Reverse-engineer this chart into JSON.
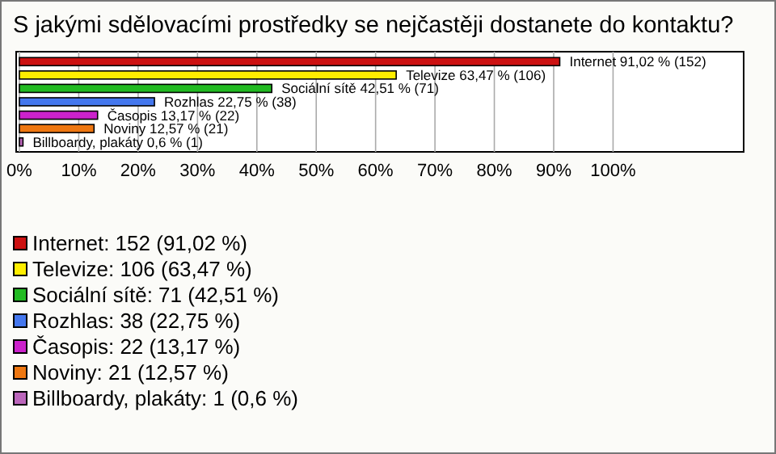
{
  "chart_data": {
    "type": "bar",
    "orientation": "horizontal",
    "title": "S jakými sdělovacími prostředky se nejčastěji dostanete do kontaktu?",
    "categories": [
      null,
      null,
      null,
      null,
      null,
      null,
      null
    ],
    "series": [
      {
        "name": "Internet: 152 (91,02 %)",
        "color": "#cc1111",
        "values": [
          91.02,
          null,
          null,
          null,
          null,
          null,
          null
        ],
        "value_labels": [
          "Internet 91,02 % (152)",
          null,
          null,
          null,
          null,
          null,
          null
        ]
      },
      {
        "name": "Televize: 106 (63,47 %)",
        "color": "#ffee00",
        "values": [
          null,
          63.47,
          null,
          null,
          null,
          null,
          null
        ],
        "value_labels": [
          null,
          "Televize 63,47 % (106)",
          null,
          null,
          null,
          null,
          null
        ]
      },
      {
        "name": "Sociální sítě: 71 (42,51 %)",
        "color": "#22bb22",
        "values": [
          null,
          null,
          42.51,
          null,
          null,
          null,
          null
        ],
        "value_labels": [
          null,
          null,
          "Sociální sítě 42,51 % (71)",
          null,
          null,
          null,
          null
        ]
      },
      {
        "name": "Rozhlas: 38 (22,75 %)",
        "color": "#4477ee",
        "values": [
          null,
          null,
          null,
          22.75,
          null,
          null,
          null
        ],
        "value_labels": [
          null,
          null,
          null,
          "Rozhlas 22,75 % (38)",
          null,
          null,
          null
        ]
      },
      {
        "name": "Časopis: 22 (13,17 %)",
        "color": "#cc22cc",
        "values": [
          null,
          null,
          null,
          null,
          13.17,
          null,
          null
        ],
        "value_labels": [
          null,
          null,
          null,
          null,
          "Časopis 13,17 % (22)",
          null,
          null
        ]
      },
      {
        "name": "Noviny: 21 (12,57 %)",
        "color": "#ee7711",
        "values": [
          null,
          null,
          null,
          null,
          null,
          12.57,
          null
        ],
        "value_labels": [
          null,
          null,
          null,
          null,
          null,
          "Noviny 12,57 % (21)",
          null
        ]
      },
      {
        "name": "Billboardy, plakáty: 1 (0,6 %)",
        "color": "#bb66bb",
        "values": [
          null,
          null,
          null,
          null,
          null,
          null,
          0.6
        ],
        "value_labels": [
          null,
          null,
          null,
          null,
          null,
          null,
          "Billboardy, plakáty 0,6 % (1)"
        ]
      }
    ],
    "xlim": [
      0,
      122
    ],
    "xticks": [
      {
        "value": 0,
        "label": "0%"
      },
      {
        "value": 10,
        "label": "10%"
      },
      {
        "value": 20,
        "label": "20%"
      },
      {
        "value": 30,
        "label": "30%"
      },
      {
        "value": 40,
        "label": "40%"
      },
      {
        "value": 50,
        "label": "50%"
      },
      {
        "value": 60,
        "label": "60%"
      },
      {
        "value": 70,
        "label": "70%"
      },
      {
        "value": 80,
        "label": "80%"
      },
      {
        "value": 90,
        "label": "90%"
      },
      {
        "value": 100,
        "label": "100%"
      }
    ],
    "grid": "x",
    "legend": "bottom"
  }
}
